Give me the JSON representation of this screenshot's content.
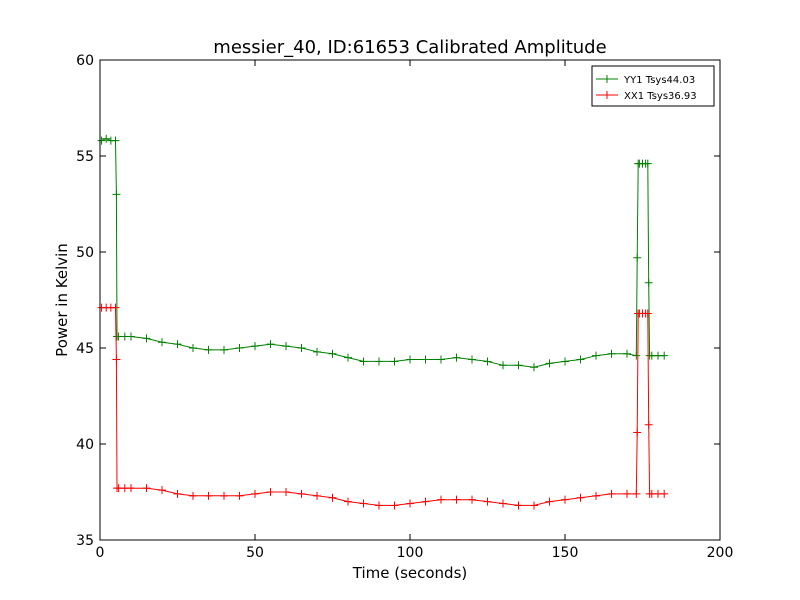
{
  "chart_data": {
    "type": "line",
    "title": "messier_40, ID:61653 Calibrated Amplitude",
    "xlabel": "Time (seconds)",
    "ylabel": "Power in Kelvin",
    "xlim": [
      0,
      200
    ],
    "ylim": [
      35,
      60
    ],
    "xticks": [
      0,
      50,
      100,
      150,
      200
    ],
    "yticks": [
      35,
      40,
      45,
      50,
      55,
      60
    ],
    "grid": false,
    "legend_position": "top-right",
    "marker": "+",
    "series": [
      {
        "name": "YY1 Tsys44.03",
        "color": "#008000",
        "x": [
          0.5,
          2,
          3.5,
          5,
          5.3,
          5.5,
          6,
          8,
          10,
          15,
          20,
          25,
          30,
          35,
          40,
          45,
          50,
          55,
          60,
          65,
          70,
          75,
          80,
          85,
          90,
          95,
          100,
          105,
          110,
          115,
          120,
          125,
          130,
          135,
          140,
          145,
          150,
          155,
          160,
          165,
          170,
          173,
          173.3,
          173.6,
          174,
          175,
          176,
          176.7,
          177,
          177.3,
          178,
          180,
          182
        ],
        "y": [
          55.8,
          55.9,
          55.8,
          55.8,
          53.0,
          45.6,
          45.6,
          45.6,
          45.6,
          45.5,
          45.3,
          45.2,
          45.0,
          44.9,
          44.9,
          45.0,
          45.1,
          45.2,
          45.1,
          45.0,
          44.8,
          44.7,
          44.5,
          44.3,
          44.3,
          44.3,
          44.4,
          44.4,
          44.4,
          44.5,
          44.4,
          44.3,
          44.1,
          44.1,
          44.0,
          44.2,
          44.3,
          44.4,
          44.6,
          44.7,
          44.7,
          44.6,
          49.7,
          54.6,
          54.6,
          54.6,
          54.6,
          54.6,
          48.4,
          44.6,
          44.6,
          44.6,
          44.6
        ]
      },
      {
        "name": "XX1 Tsys36.93",
        "color": "#ff0000",
        "x": [
          0.5,
          2,
          3.5,
          5,
          5.3,
          5.5,
          6,
          8,
          10,
          15,
          20,
          25,
          30,
          35,
          40,
          45,
          50,
          55,
          60,
          65,
          70,
          75,
          80,
          85,
          90,
          95,
          100,
          105,
          110,
          115,
          120,
          125,
          130,
          135,
          140,
          145,
          150,
          155,
          160,
          165,
          170,
          173,
          173.3,
          173.6,
          174,
          175,
          176,
          176.7,
          177,
          177.3,
          178,
          180,
          182
        ],
        "y": [
          47.1,
          47.1,
          47.1,
          47.1,
          44.4,
          37.7,
          37.7,
          37.7,
          37.7,
          37.7,
          37.6,
          37.4,
          37.3,
          37.3,
          37.3,
          37.3,
          37.4,
          37.5,
          37.5,
          37.4,
          37.3,
          37.2,
          37.0,
          36.9,
          36.8,
          36.8,
          36.9,
          37.0,
          37.1,
          37.1,
          37.1,
          37.0,
          36.9,
          36.8,
          36.8,
          37.0,
          37.1,
          37.2,
          37.3,
          37.4,
          37.4,
          37.4,
          40.6,
          46.8,
          46.8,
          46.8,
          46.8,
          46.8,
          41.0,
          37.4,
          37.4,
          37.4,
          37.4
        ]
      }
    ]
  }
}
